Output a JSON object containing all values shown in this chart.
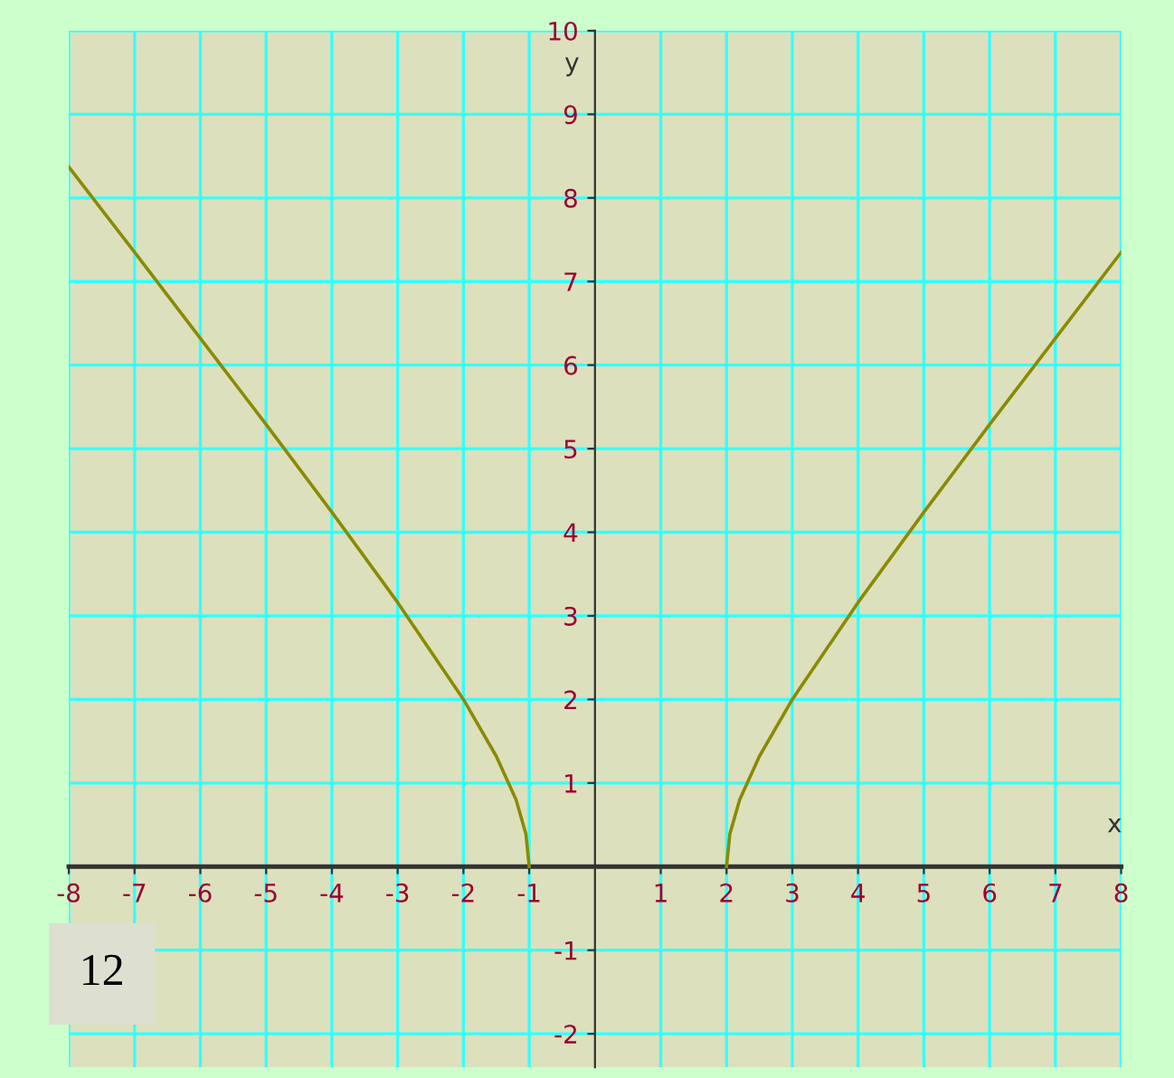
{
  "chart_data": {
    "type": "line",
    "xlabel": "x",
    "ylabel": "y",
    "series": [
      {
        "color": "#8a8a00",
        "x": [
          -8,
          -7,
          -6,
          -5,
          -4,
          -3,
          -2,
          -1.5,
          -1.2,
          -1.05,
          -1
        ],
        "values": [
          8.37,
          7.35,
          6.32,
          5.29,
          4.24,
          3.16,
          2,
          1.32,
          0.8,
          0.39,
          0
        ]
      },
      {
        "color": "#8a8a00",
        "x": [
          2,
          2.05,
          2.2,
          2.5,
          3,
          4,
          5,
          6,
          7,
          8
        ],
        "values": [
          0,
          0.39,
          0.8,
          1.32,
          2,
          3.16,
          4.24,
          5.29,
          6.32,
          7.35
        ]
      }
    ],
    "xlim": [
      -8,
      8
    ],
    "ylim": [
      -2.4,
      10
    ],
    "xticks": [
      -8,
      -7,
      -6,
      -5,
      -4,
      -3,
      -2,
      -1,
      1,
      2,
      3,
      4,
      5,
      6,
      7,
      8
    ],
    "yticks": [
      -2,
      -1,
      1,
      2,
      3,
      4,
      5,
      6,
      7,
      8,
      9,
      10
    ],
    "grid": true,
    "marker": "none",
    "line_style": "solid",
    "annotations": [
      "12"
    ]
  }
}
